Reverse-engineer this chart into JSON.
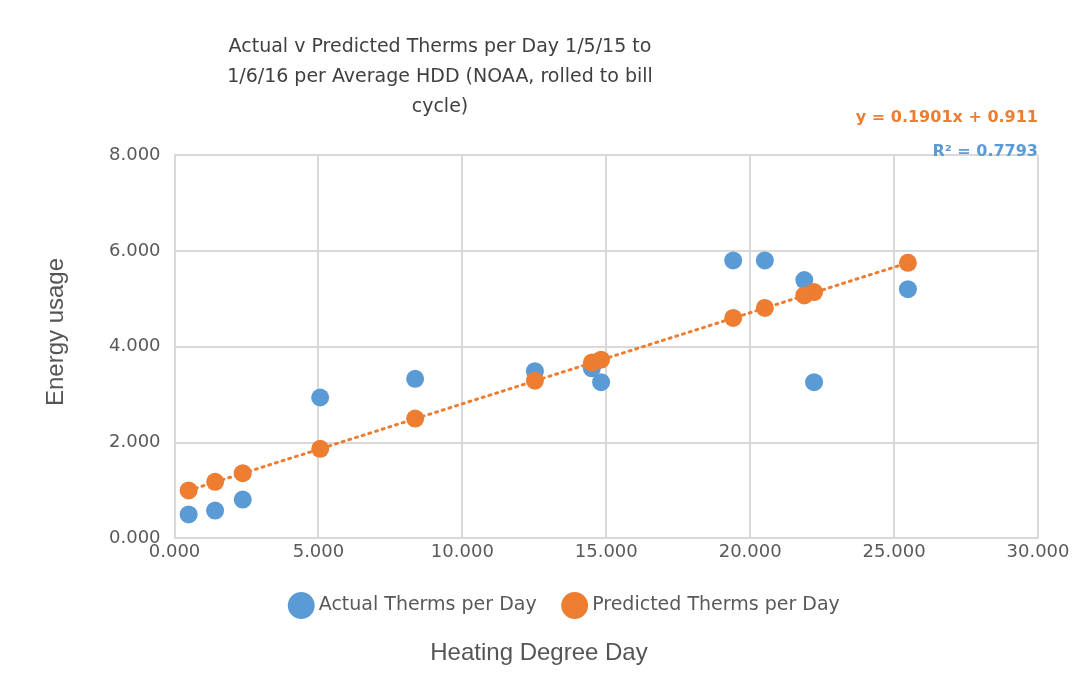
{
  "chart_data": {
    "type": "scatter",
    "title": "Actual v Predicted Therms per Day 1/5/15 to 1/6/16 per Average HDD (NOAA, rolled to bill cycle)",
    "xlabel": "Heating Degree Day",
    "ylabel": "Energy usage",
    "annotations": [
      "y = 0.1901x + 0.911",
      "R² = 0.7793"
    ],
    "series": [
      {
        "name": "Actual Therms per Day",
        "color": "#5b9bd5",
        "x": [
          0.49,
          1.41,
          2.37,
          5.06,
          8.36,
          12.52,
          14.5,
          14.82,
          19.41,
          20.51,
          21.88,
          22.22,
          25.48
        ],
        "values": [
          0.5,
          0.58,
          0.81,
          2.94,
          3.33,
          3.49,
          3.55,
          3.26,
          5.8,
          5.8,
          5.39,
          3.26,
          5.2
        ]
      },
      {
        "name": "Predicted Therms per Day",
        "color": "#ed7d31",
        "x": [
          0.49,
          1.41,
          2.37,
          5.06,
          8.36,
          12.52,
          14.5,
          14.82,
          19.41,
          20.51,
          21.88,
          22.22,
          25.48
        ],
        "values": [
          1.0,
          1.18,
          1.36,
          1.87,
          2.5,
          3.29,
          3.67,
          3.73,
          4.6,
          4.81,
          5.07,
          5.14,
          5.75
        ]
      },
      {
        "type": "line",
        "color": "#ed7d31",
        "line_style": "dotted",
        "marker": "none",
        "x": [
          0.49,
          25.48
        ],
        "values": [
          1.0,
          5.75
        ]
      }
    ],
    "xlim": [
      0,
      30
    ],
    "xticks": [
      {
        "value": 0,
        "label": "0.000"
      },
      {
        "value": 5,
        "label": "5.000"
      },
      {
        "value": 10,
        "label": "10.000"
      },
      {
        "value": 15,
        "label": "15.000"
      },
      {
        "value": 20,
        "label": "20.000"
      },
      {
        "value": 25,
        "label": "25.000"
      },
      {
        "value": 30,
        "label": "30.000"
      }
    ],
    "ylim": [
      0,
      8
    ],
    "yticks": [
      {
        "value": 0,
        "label": "0.000"
      },
      {
        "value": 2,
        "label": "2.000"
      },
      {
        "value": 4,
        "label": "4.000"
      },
      {
        "value": 6,
        "label": "6.000"
      },
      {
        "value": 8,
        "label": "8.000"
      }
    ],
    "grid": true,
    "legend": "bottom",
    "marker": "circle"
  }
}
